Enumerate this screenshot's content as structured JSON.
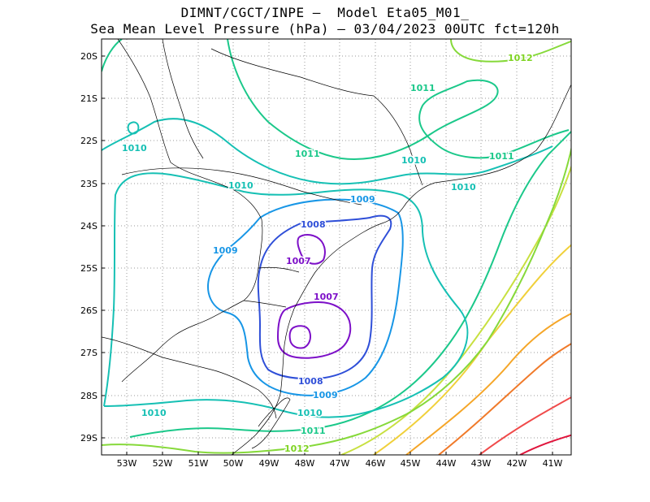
{
  "title_line1": "DIMNT/CGCT/INPE –  Model Eta05_M01_",
  "title_line2": "Sea Mean Level Pressure (hPa) – 03/04/2023 00UTC fct=120h",
  "lon_ticks": [
    "53W",
    "52W",
    "51W",
    "50W",
    "49W",
    "48W",
    "47W",
    "46W",
    "45W",
    "44W",
    "43W",
    "42W",
    "41W"
  ],
  "lat_ticks": [
    "20S",
    "21S",
    "22S",
    "23S",
    "24S",
    "25S",
    "26S",
    "27S",
    "28S",
    "29S"
  ],
  "contour_labels": [
    {
      "text": "1012",
      "color": "#7ed321"
    },
    {
      "text": "1011",
      "color": "#1bc88a"
    },
    {
      "text": "1011",
      "color": "#1bc88a"
    },
    {
      "text": "1011",
      "color": "#1bc88a"
    },
    {
      "text": "1010",
      "color": "#16c0b4"
    },
    {
      "text": "1010",
      "color": "#16c0b4"
    },
    {
      "text": "1010",
      "color": "#16c0b4"
    },
    {
      "text": "1010",
      "color": "#16c0b4"
    },
    {
      "text": "1009",
      "color": "#1896e6"
    },
    {
      "text": "1009",
      "color": "#1896e6"
    },
    {
      "text": "1009",
      "color": "#1896e6"
    },
    {
      "text": "1008",
      "color": "#2f4fd8"
    },
    {
      "text": "1008",
      "color": "#2f4fd8"
    },
    {
      "text": "1007",
      "color": "#7d10c8"
    },
    {
      "text": "1007",
      "color": "#7d10c8"
    },
    {
      "text": "1010",
      "color": "#16c0b4"
    },
    {
      "text": "1011",
      "color": "#1bc88a"
    },
    {
      "text": "1012",
      "color": "#7ed321"
    },
    {
      "text": "1010",
      "color": "#16c0b4"
    }
  ]
}
